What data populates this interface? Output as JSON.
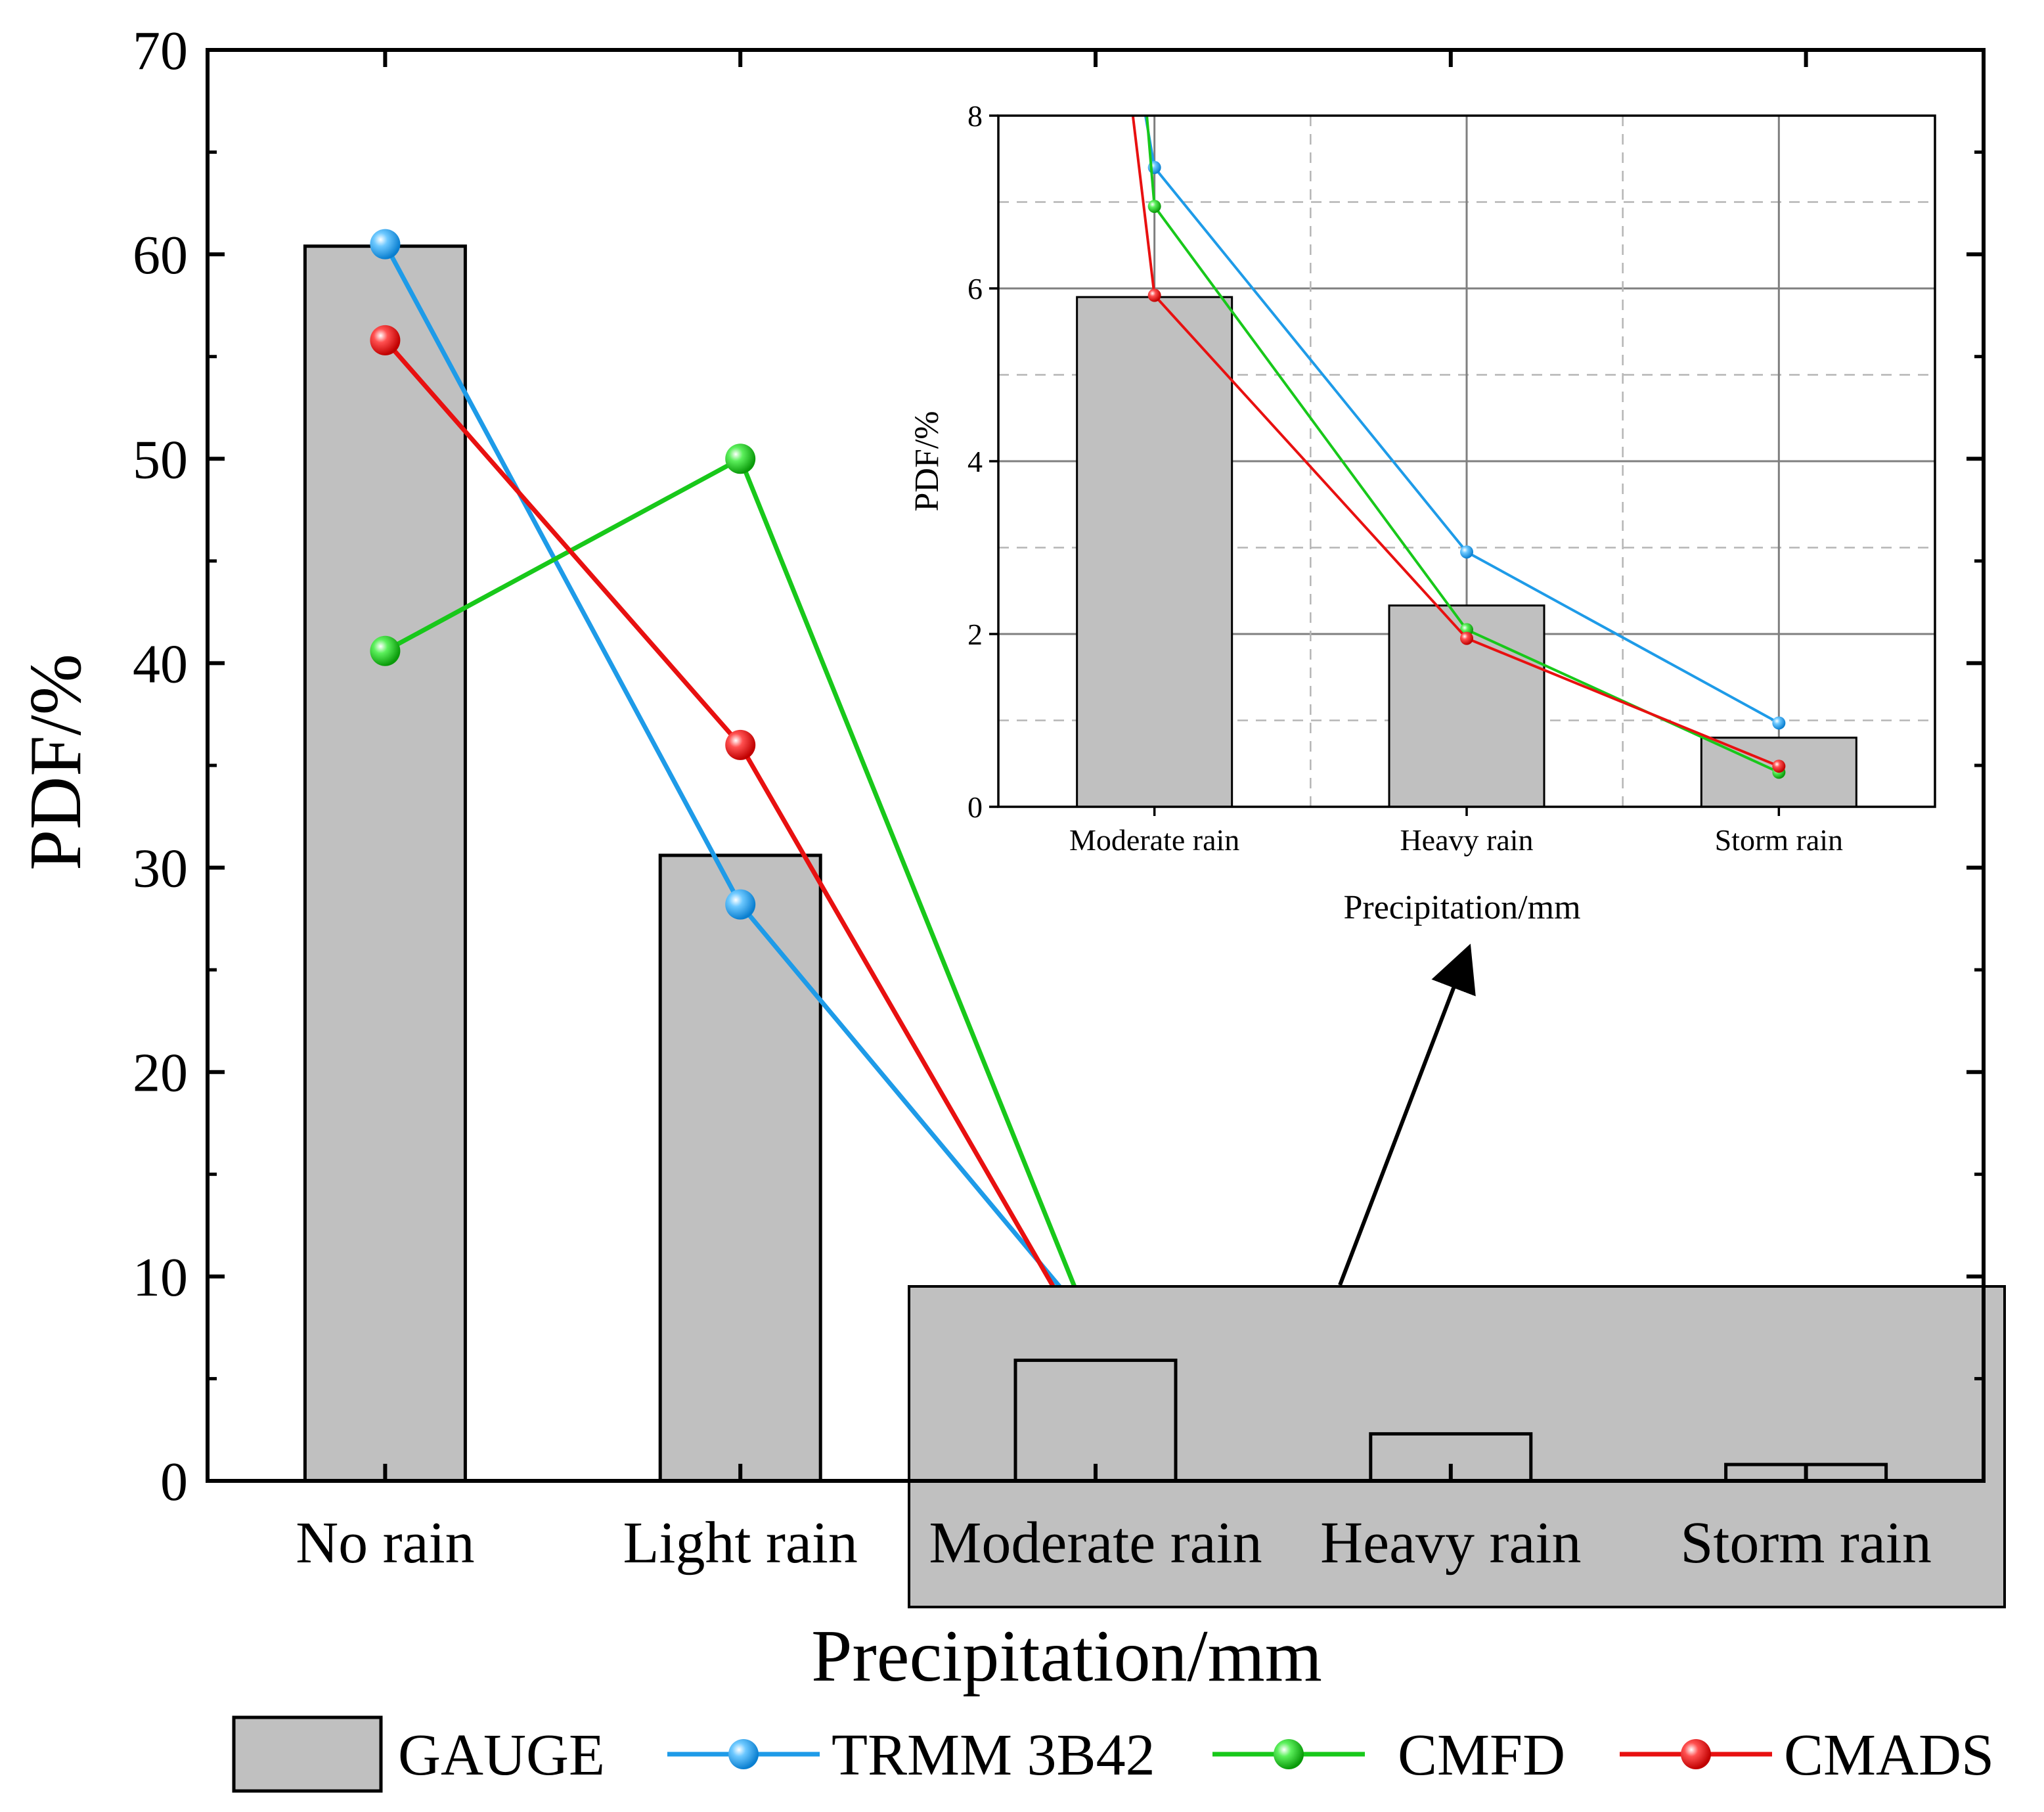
{
  "colors": {
    "gauge": "#c0c0c0",
    "trmm": "#1e9be8",
    "cmfd": "#18c81a",
    "cmads": "#e81010",
    "zoom_box": "#c0c0c0"
  },
  "chart_data": [
    {
      "id": "main",
      "type": "bar+line",
      "xlabel": "Precipitation/mm",
      "ylabel": "PDF/%",
      "ylim": [
        0,
        70
      ],
      "yticks": [
        0,
        10,
        20,
        30,
        40,
        50,
        60,
        70
      ],
      "yticklabels": [
        "0",
        "10",
        "20",
        "30",
        "40",
        "50",
        "60",
        "70"
      ],
      "categories": [
        "No rain",
        "Light rain",
        "Moderate rain",
        "Heavy rain",
        "Storm rain"
      ],
      "grid": false,
      "legend": "bottom",
      "series": [
        {
          "name": "GAUGE",
          "kind": "bar",
          "values": [
            60.4,
            30.6,
            5.9,
            2.3,
            0.8
          ]
        },
        {
          "name": "TRMM 3B42",
          "kind": "line",
          "values": [
            60.5,
            28.2,
            7.4,
            2.95,
            0.97
          ]
        },
        {
          "name": "CMFD",
          "kind": "line",
          "values": [
            40.6,
            50.0,
            6.95,
            2.05,
            0.4
          ]
        },
        {
          "name": "CMADS",
          "kind": "line",
          "values": [
            55.8,
            36.0,
            5.92,
            1.95,
            0.47
          ]
        }
      ]
    },
    {
      "id": "inset",
      "type": "bar+line",
      "xlabel": "Precipitation/mm",
      "ylabel": "PDF/%",
      "ylim": [
        0,
        8
      ],
      "yticks": [
        0,
        2,
        4,
        6,
        8
      ],
      "yticklabels": [
        "0",
        "2",
        "4",
        "6",
        "8"
      ],
      "categories": [
        "Moderate rain",
        "Heavy rain",
        "Storm rain"
      ],
      "grid": true,
      "series": [
        {
          "name": "GAUGE",
          "kind": "bar",
          "values": [
            5.9,
            2.33,
            0.8
          ]
        },
        {
          "name": "TRMM 3B42",
          "kind": "line",
          "values": [
            7.4,
            2.95,
            0.97
          ]
        },
        {
          "name": "CMFD",
          "kind": "line",
          "values": [
            6.95,
            2.05,
            0.4
          ]
        },
        {
          "name": "CMADS",
          "kind": "line",
          "values": [
            5.92,
            1.95,
            0.47
          ]
        }
      ]
    }
  ]
}
